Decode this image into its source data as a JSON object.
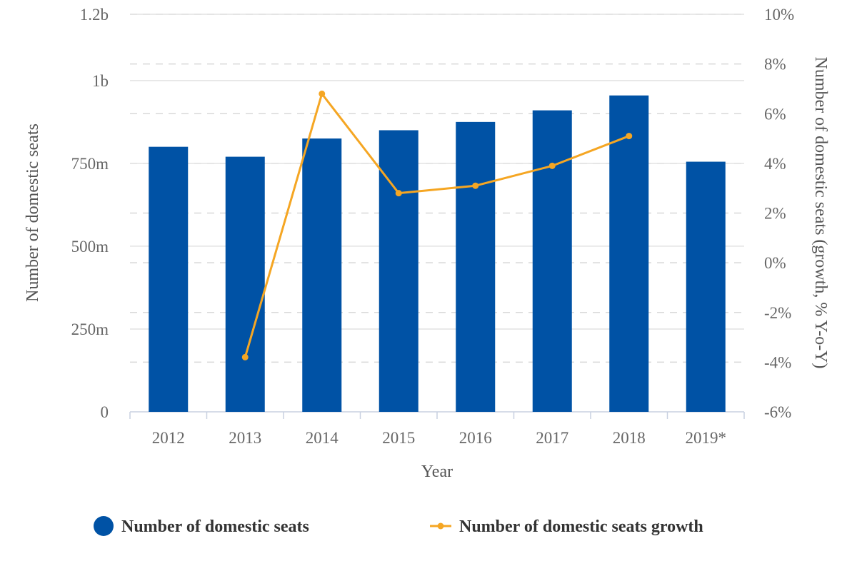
{
  "chart_data": {
    "type": "bar",
    "categories": [
      "2012",
      "2013",
      "2014",
      "2015",
      "2016",
      "2017",
      "2018",
      "2019*"
    ],
    "series": [
      {
        "name": "Number of domestic seats",
        "type": "bar",
        "axis": "left",
        "color": "#0052a5",
        "values": [
          800,
          770,
          825,
          850,
          875,
          910,
          955,
          755
        ]
      },
      {
        "name": "Number of domestic seats growth",
        "type": "line",
        "axis": "right",
        "color": "#f5a623",
        "values": [
          null,
          -3.8,
          6.8,
          2.8,
          3.1,
          3.9,
          5.1,
          null
        ]
      }
    ],
    "xlabel": "Year",
    "ylabel": "Number of domestic seats",
    "ylabel_right": "Number of domestic seats (growth, % Y-o-Y)",
    "ylim": [
      0,
      1200
    ],
    "ylim_right": [
      -6,
      10
    ],
    "yticks": [
      {
        "value": 0,
        "label": "0"
      },
      {
        "value": 250,
        "label": "250m"
      },
      {
        "value": 500,
        "label": "500m"
      },
      {
        "value": 750,
        "label": "750m"
      },
      {
        "value": 1000,
        "label": "1b"
      },
      {
        "value": 1200,
        "label": "1.2b"
      }
    ],
    "yticks_right": [
      {
        "value": -6,
        "label": "-6%"
      },
      {
        "value": -4,
        "label": "-4%"
      },
      {
        "value": -2,
        "label": "-2%"
      },
      {
        "value": 0,
        "label": "0%"
      },
      {
        "value": 2,
        "label": "2%"
      },
      {
        "value": 4,
        "label": "4%"
      },
      {
        "value": 6,
        "label": "6%"
      },
      {
        "value": 8,
        "label": "8%"
      },
      {
        "value": 10,
        "label": "10%"
      }
    ],
    "grid": true,
    "legend_position": "bottom"
  }
}
